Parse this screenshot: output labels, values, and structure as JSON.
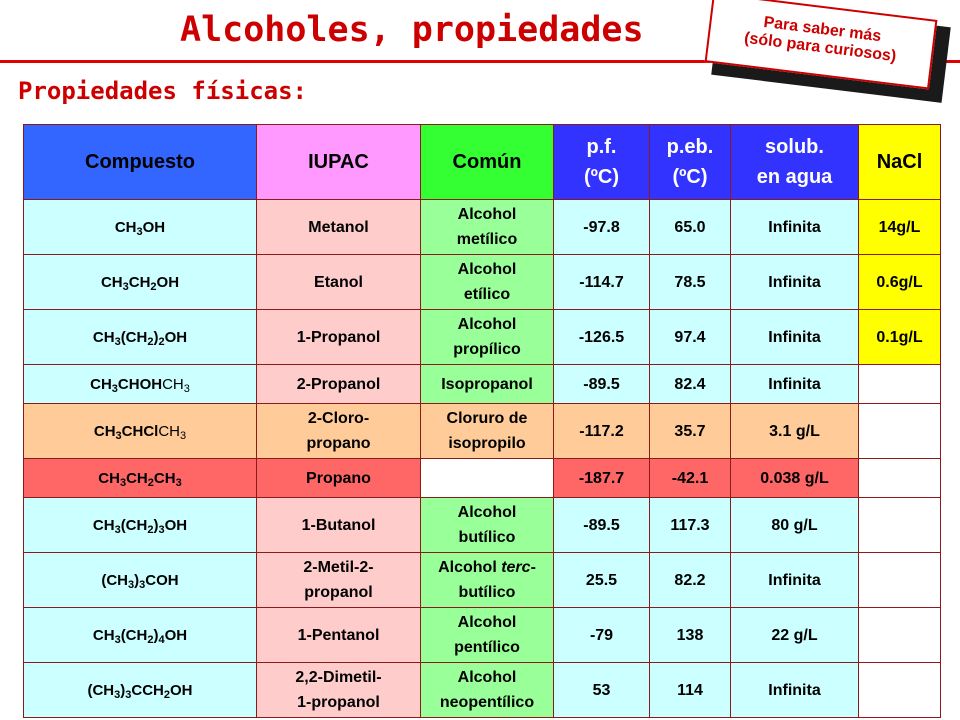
{
  "title": "Alcoholes, propiedades",
  "subtitle": "Propiedades físicas:",
  "curious_box": {
    "line1": "Para saber más",
    "line2": "(sólo para curiosos)"
  },
  "colors": {
    "accent_red": "#cc0000",
    "header_compuesto": "#3366ff",
    "header_iupac": "#ff99ff",
    "header_comun": "#33ff33",
    "header_properties": "#3333ff",
    "header_nacl": "#ffff00",
    "row_cyan": "#ccffff",
    "row_pink": "#ffcccc",
    "row_green": "#99ff99",
    "row_orange": "#ffcc99",
    "row_red": "#ff6666",
    "nacl_yellow": "#ffff00"
  },
  "table": {
    "headers": {
      "compuesto": "Compuesto",
      "iupac": "IUPAC",
      "comun": "Común",
      "pf_line1": "p.f.",
      "pf_line2": "(ºC)",
      "peb_line1": "p.eb.",
      "peb_line2": "(ºC)",
      "solub_line1": "solub.",
      "solub_line2": "en agua",
      "nacl": "NaCl"
    },
    "rows": [
      {
        "formula": "CH3OH",
        "iupac": "Metanol",
        "comun_line1": "Alcohol",
        "comun_line2": "metílico",
        "pf": "-97.8",
        "peb": "65.0",
        "solub": "Infinita",
        "nacl": "14g/L"
      },
      {
        "formula": "CH3CH2OH",
        "iupac": "Etanol",
        "comun_line1": "Alcohol",
        "comun_line2": "etílico",
        "pf": "-114.7",
        "peb": "78.5",
        "solub": "Infinita",
        "nacl": "0.6g/L"
      },
      {
        "formula": "CH3(CH2)2OH",
        "iupac": "1-Propanol",
        "comun_line1": "Alcohol",
        "comun_line2": "propílico",
        "pf": "-126.5",
        "peb": "97.4",
        "solub": "Infinita",
        "nacl": "0.1g/L"
      },
      {
        "formula": "CH3CHOHCH3",
        "iupac": "2-Propanol",
        "comun_line1": "Isopropanol",
        "comun_line2": "",
        "pf": "-89.5",
        "peb": "82.4",
        "solub": "Infinita",
        "nacl": ""
      },
      {
        "formula": "CH3CHClCH3",
        "iupac_line1": "2-Cloro-",
        "iupac_line2": "propano",
        "comun_line1": "Cloruro de",
        "comun_line2": "isopropilo",
        "pf": "-117.2",
        "peb": "35.7",
        "solub": "3.1 g/L",
        "nacl": ""
      },
      {
        "formula": "CH3CH2CH3",
        "iupac": "Propano",
        "comun_line1": "",
        "comun_line2": "",
        "pf": "-187.7",
        "peb": "-42.1",
        "solub": "0.038 g/L",
        "nacl": ""
      },
      {
        "formula": "CH3(CH2)3OH",
        "iupac": "1-Butanol",
        "comun_line1": "Alcohol",
        "comun_line2": "butílico",
        "pf": "-89.5",
        "peb": "117.3",
        "solub": "80 g/L",
        "nacl": ""
      },
      {
        "formula": "(CH3)3COH",
        "iupac_line1": "2-Metil-2-",
        "iupac_line2": "propanol",
        "comun_line1": "Alcohol terc-",
        "comun_line2": "butílico",
        "pf": "25.5",
        "peb": "82.2",
        "solub": "Infinita",
        "nacl": ""
      },
      {
        "formula": "CH3(CH2)4OH",
        "iupac": "1-Pentanol",
        "comun_line1": "Alcohol",
        "comun_line2": "pentílico",
        "pf": "-79",
        "peb": "138",
        "solub": "22 g/L",
        "nacl": ""
      },
      {
        "formula": "(CH3)3CCH2OH",
        "iupac_line1": "2,2-Dimetil-",
        "iupac_line2": "1-propanol",
        "comun_line1": "Alcohol",
        "comun_line2": "neopentílico",
        "pf": "53",
        "peb": "114",
        "solub": "Infinita",
        "nacl": ""
      }
    ]
  }
}
